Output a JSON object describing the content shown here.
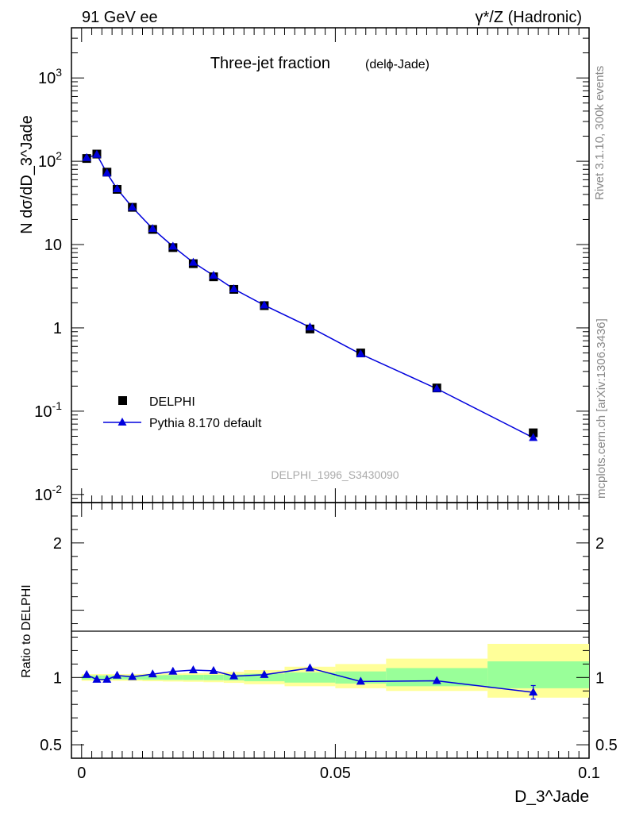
{
  "header": {
    "left": "91 GeV ee",
    "right": "γ*/Z (Hadronic)"
  },
  "side_labels": {
    "top": "Rivet 3.1.10,  300k events",
    "bottom": "mcplots.cern.ch [arXiv:1306.3436]"
  },
  "watermark": "DELPHI_1996_S3430090",
  "chart_data": [
    {
      "type": "scatter",
      "title": "Three-jet fraction",
      "subtitle": "(delϕ-Jade)",
      "ylabel": "N dσ/dD_3^Jade",
      "yscale": "log",
      "ylim": [
        0.008,
        4000
      ],
      "xlim": [
        -0.002,
        0.1
      ],
      "y_tick_labels": [
        "10^-2",
        "10^-1",
        "1",
        "10",
        "10^2",
        "10^3"
      ],
      "legend": {
        "placement": "bottom-left"
      },
      "series": [
        {
          "name": "DELPHI",
          "marker": "square",
          "color": "#000000",
          "x": [
            0.001,
            0.003,
            0.005,
            0.007,
            0.01,
            0.014,
            0.018,
            0.022,
            0.026,
            0.03,
            0.036,
            0.045,
            0.055,
            0.07,
            0.089
          ],
          "y": [
            108,
            122,
            74,
            46,
            28,
            15.2,
            9.2,
            5.9,
            4.1,
            2.9,
            1.85,
            0.97,
            0.5,
            0.19,
            0.055
          ]
        },
        {
          "name": "Pythia 8.170 default",
          "marker": "triangle",
          "color": "#0000dd",
          "line": true,
          "x": [
            0.001,
            0.003,
            0.005,
            0.007,
            0.01,
            0.014,
            0.018,
            0.022,
            0.026,
            0.03,
            0.036,
            0.045,
            0.055,
            0.07,
            0.089
          ],
          "y": [
            110,
            120,
            72,
            46.5,
            28,
            15.5,
            9.5,
            6.1,
            4.25,
            2.93,
            1.87,
            1.02,
            0.485,
            0.186,
            0.048
          ]
        }
      ]
    },
    {
      "type": "scatter",
      "ylabel": "Ratio to DELPHI",
      "xlabel": "D_3^Jade",
      "ylim": [
        0.4,
        2.3
      ],
      "xlim": [
        -0.002,
        0.1
      ],
      "x_tick_labels": [
        "0",
        "0.05",
        "0.1"
      ],
      "y_tick_labels": [
        "0.5",
        "1",
        "2"
      ],
      "bands": {
        "bin_edges": [
          0.0,
          0.002,
          0.004,
          0.006,
          0.008,
          0.012,
          0.016,
          0.02,
          0.024,
          0.028,
          0.032,
          0.04,
          0.05,
          0.06,
          0.08,
          0.1
        ],
        "inner": [
          [
            0.985,
            1.015
          ],
          [
            0.985,
            1.015
          ],
          [
            0.985,
            1.015
          ],
          [
            0.985,
            1.015
          ],
          [
            0.985,
            1.015
          ],
          [
            0.983,
            1.017
          ],
          [
            0.982,
            1.018
          ],
          [
            0.981,
            1.019
          ],
          [
            0.98,
            1.02
          ],
          [
            0.978,
            1.022
          ],
          [
            0.972,
            1.028
          ],
          [
            0.962,
            1.038
          ],
          [
            0.955,
            1.045
          ],
          [
            0.935,
            1.07
          ],
          [
            0.92,
            1.12
          ]
        ],
        "outer": [
          [
            0.975,
            1.025
          ],
          [
            0.975,
            1.025
          ],
          [
            0.975,
            1.025
          ],
          [
            0.975,
            1.025
          ],
          [
            0.975,
            1.025
          ],
          [
            0.972,
            1.028
          ],
          [
            0.97,
            1.03
          ],
          [
            0.968,
            1.032
          ],
          [
            0.965,
            1.035
          ],
          [
            0.96,
            1.042
          ],
          [
            0.95,
            1.055
          ],
          [
            0.935,
            1.08
          ],
          [
            0.92,
            1.1
          ],
          [
            0.9,
            1.14
          ],
          [
            0.85,
            1.25
          ]
        ],
        "inner_color": "#99ff99",
        "outer_color": "#ffff99"
      },
      "series": [
        {
          "name": "Pythia 8.170 default",
          "marker": "triangle",
          "color": "#0000dd",
          "line": true,
          "x": [
            0.001,
            0.003,
            0.005,
            0.007,
            0.01,
            0.014,
            0.018,
            0.022,
            0.026,
            0.03,
            0.036,
            0.045,
            0.055,
            0.07,
            0.089
          ],
          "y": [
            1.02,
            0.985,
            0.985,
            1.015,
            1.005,
            1.025,
            1.045,
            1.055,
            1.05,
            1.01,
            1.02,
            1.07,
            0.97,
            0.975,
            0.89
          ],
          "yerr": [
            0,
            0,
            0,
            0,
            0,
            0,
            0,
            0,
            0,
            0,
            0,
            0,
            0,
            0,
            0.05
          ]
        }
      ]
    }
  ]
}
